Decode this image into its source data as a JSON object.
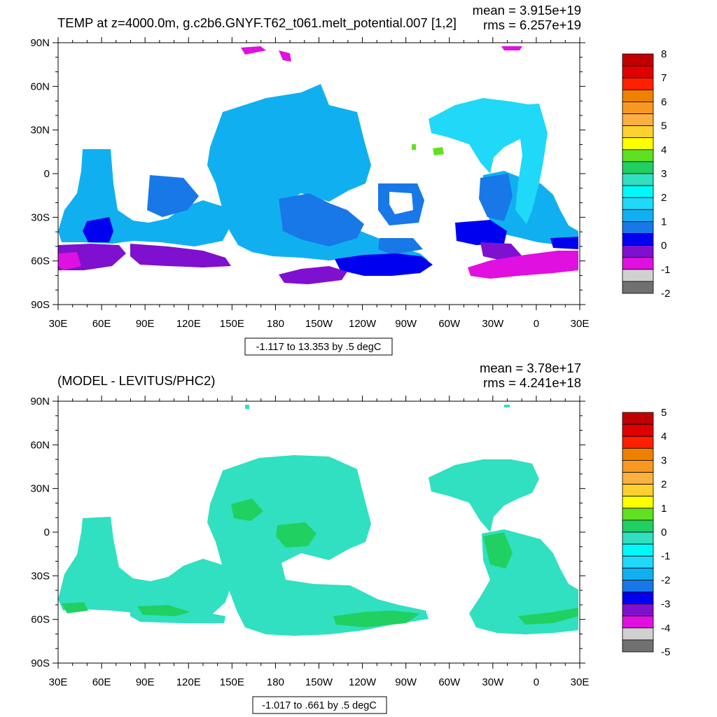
{
  "chart_data": [
    {
      "type": "heatmap",
      "title": "TEMP at z=4000.0m, g.c2b6.GNYF.T62_t061.melt_potential.007 [1,2]",
      "stats": {
        "mean": "mean = 3.915e+19",
        "rms": "rms = 6.257e+19"
      },
      "x_ticks": [
        "30E",
        "60E",
        "90E",
        "120E",
        "150E",
        "180",
        "150W",
        "120W",
        "90W",
        "60W",
        "30W",
        "0",
        "30E"
      ],
      "y_ticks": [
        "90N",
        "60N",
        "30N",
        "0",
        "30S",
        "60S",
        "90S"
      ],
      "contour_info": "-1.117 to 13.353 by .5 degC",
      "colorbar": {
        "labels": [
          "8",
          "7",
          "6",
          "5",
          "4",
          "3",
          "2",
          "1",
          "0",
          "-1",
          "-2"
        ],
        "colors": [
          "#c00000",
          "#e00000",
          "#ff2000",
          "#f08000",
          "#f89820",
          "#fcb040",
          "#ffd030",
          "#ffff00",
          "#60e020",
          "#20d060",
          "#30e0c0",
          "#00f8f8",
          "#20d8f8",
          "#10b0f0",
          "#1878e8",
          "#0000f0",
          "#8010d0",
          "#e010e0",
          "#d0d0d0",
          "#707070"
        ]
      }
    },
    {
      "type": "heatmap",
      "title": "(MODEL - LEVITUS/PHC2)",
      "stats": {
        "mean": "mean = 3.78e+17",
        "rms": "rms = 4.241e+18"
      },
      "x_ticks": [
        "30E",
        "60E",
        "90E",
        "120E",
        "150E",
        "180",
        "150W",
        "120W",
        "90W",
        "60W",
        "30W",
        "0",
        "30E"
      ],
      "y_ticks": [
        "90N",
        "60N",
        "30N",
        "0",
        "30S",
        "60S",
        "90S"
      ],
      "contour_info": "-1.017 to .661 by .5 degC",
      "colorbar": {
        "labels": [
          "5",
          "4",
          "3",
          "2",
          "1",
          "0",
          "-1",
          "-2",
          "-3",
          "-4",
          "-5"
        ],
        "colors": [
          "#c00000",
          "#e00000",
          "#ff2000",
          "#f08000",
          "#f89820",
          "#fcb040",
          "#ffd030",
          "#ffff00",
          "#60e020",
          "#20d060",
          "#30e0c0",
          "#00f8f8",
          "#20d8f8",
          "#10b0f0",
          "#1878e8",
          "#0000f0",
          "#8010d0",
          "#e010e0",
          "#d0d0d0",
          "#707070"
        ]
      }
    }
  ]
}
